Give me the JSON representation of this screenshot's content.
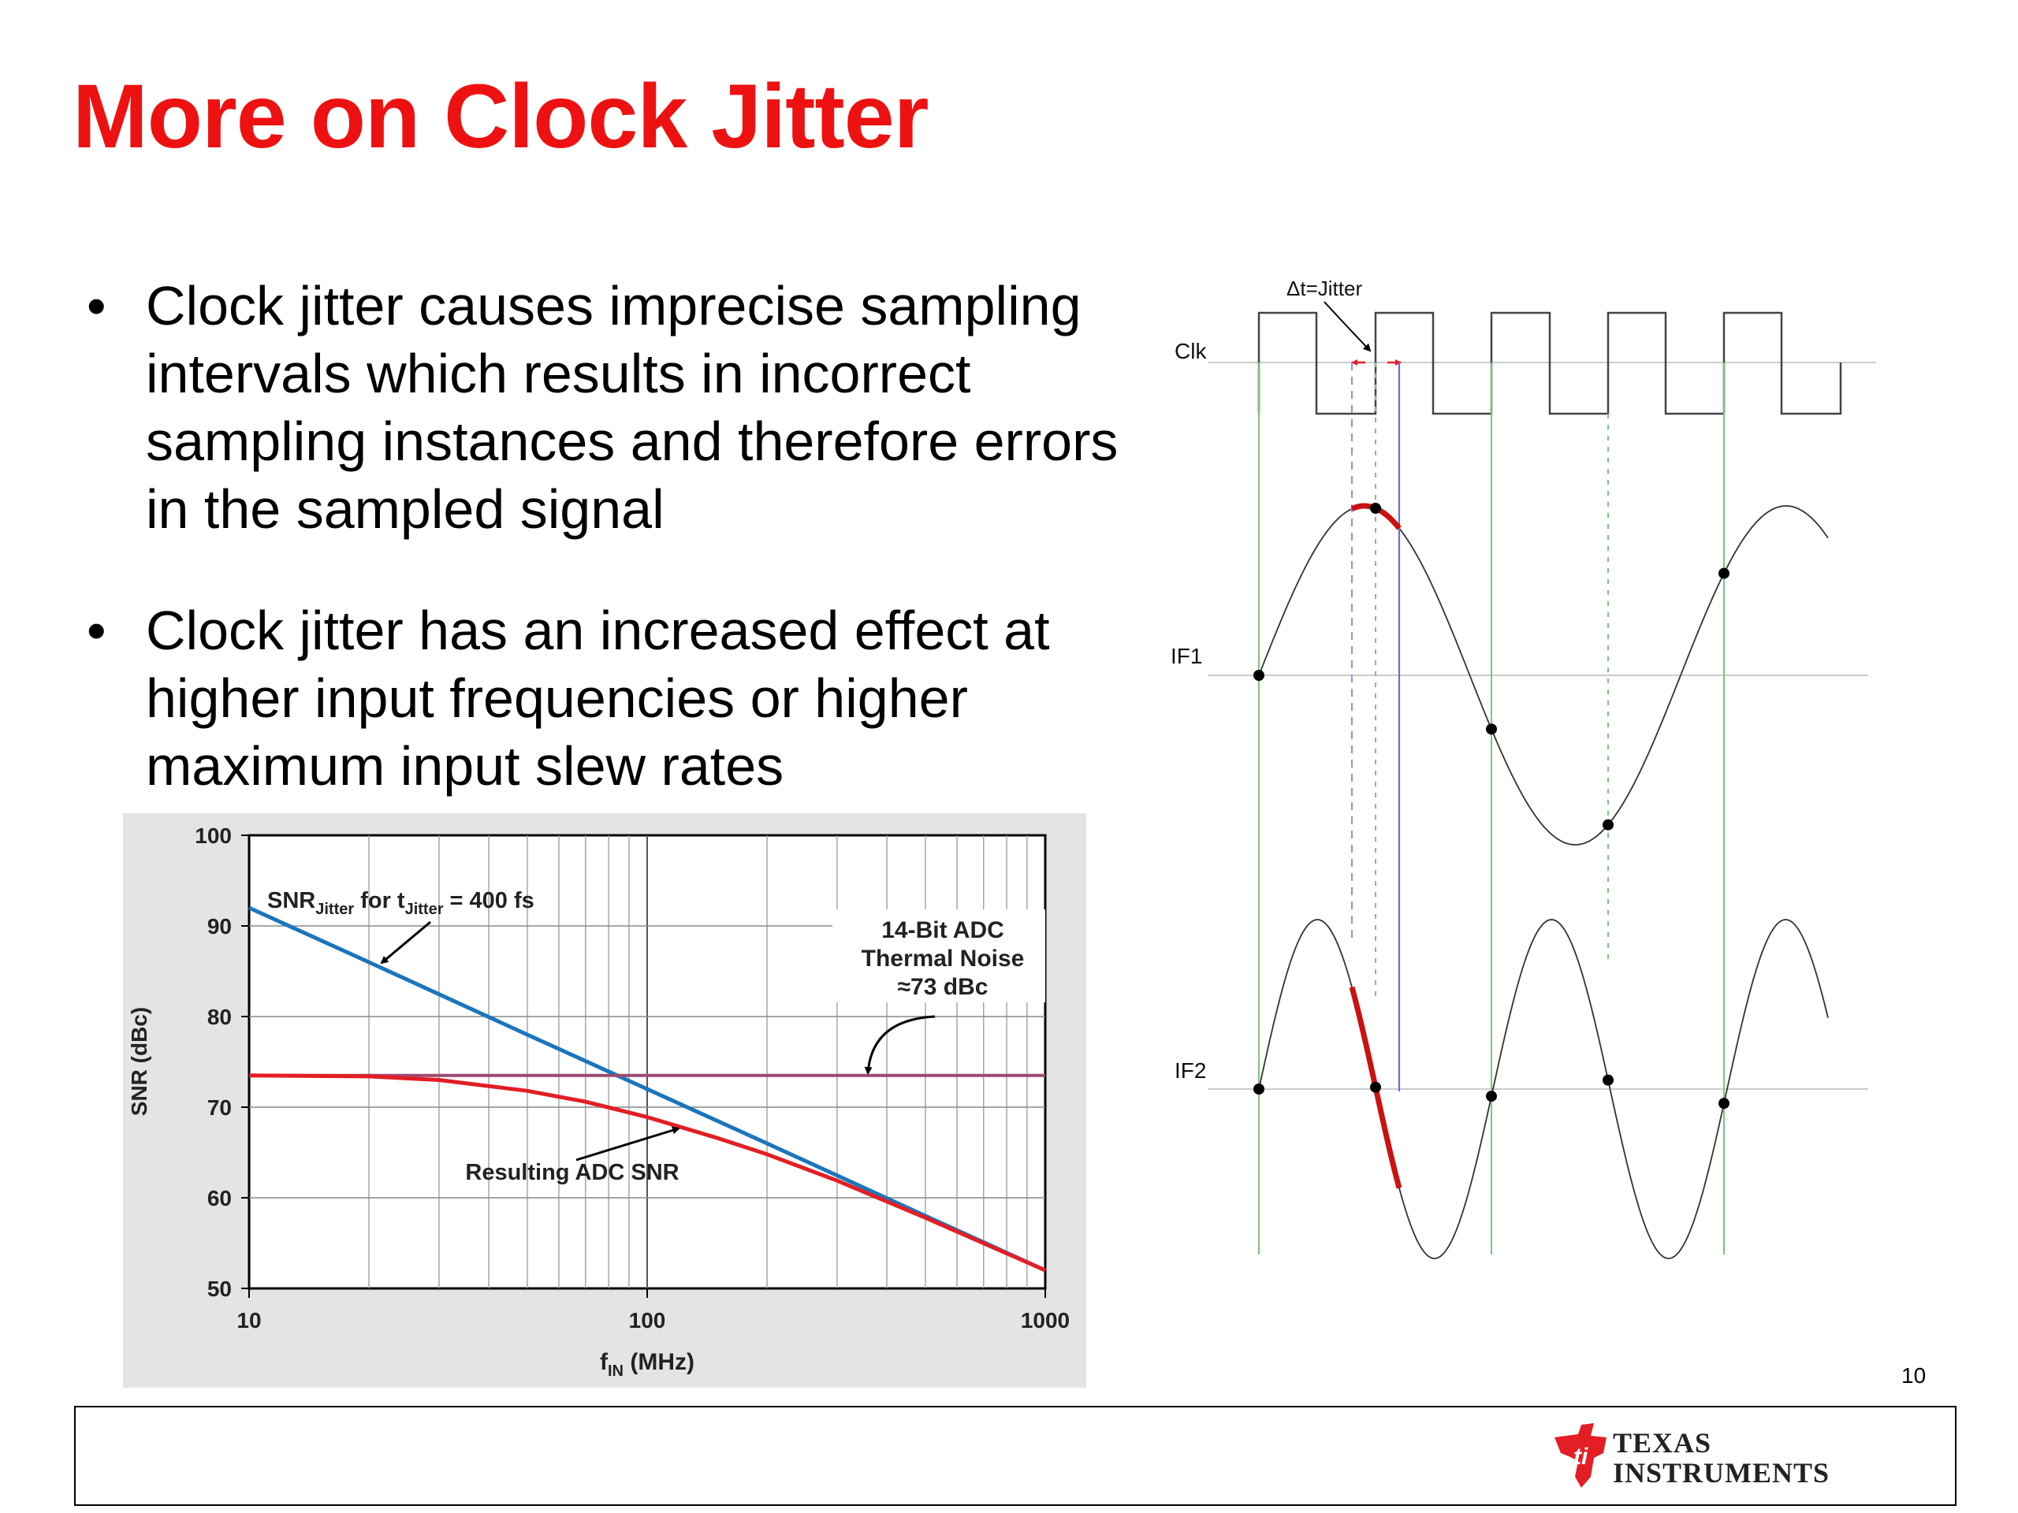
{
  "slide": {
    "title": "More on Clock Jitter",
    "bullets": [
      "Clock jitter causes imprecise sampling intervals which results in incorrect sampling instances and therefore errors in the sampled signal",
      "Clock jitter has an increased effect at higher input frequencies or higher maximum input slew rates"
    ],
    "page_number": "10"
  },
  "chart_data": {
    "type": "line",
    "xscale": "log",
    "xlim": [
      10,
      1000
    ],
    "ylim": [
      50,
      100
    ],
    "xticks": [
      "10",
      "100",
      "1000"
    ],
    "yticks": [
      "50",
      "60",
      "70",
      "80",
      "90",
      "100"
    ],
    "xlabel": "f",
    "xlabel_sub": "IN",
    "xlabel_unit": " (MHz)",
    "ylabel": "SNR (dBc)",
    "grid": true,
    "series": [
      {
        "label": "SNR Jitter",
        "color": "#1b75bc",
        "x": [
          10,
          20,
          50,
          100,
          200,
          500,
          1000
        ],
        "y": [
          92,
          86,
          78,
          72,
          66,
          58,
          52
        ]
      },
      {
        "label": "Thermal Noise",
        "color": "#9b4a73",
        "x": [
          10,
          1000
        ],
        "y": [
          73.5,
          73.5
        ]
      },
      {
        "label": "Resulting ADC SNR",
        "color": "#e31e24",
        "x": [
          10,
          20,
          30,
          50,
          70,
          100,
          150,
          200,
          300,
          500,
          1000
        ],
        "y": [
          73.5,
          73.4,
          73.0,
          71.8,
          70.6,
          68.9,
          66.6,
          64.8,
          61.9,
          57.8,
          52
        ]
      }
    ],
    "annotations": {
      "jitter_label_a": "SNR",
      "jitter_label_sub1": "Jitter",
      "jitter_label_b": " for t",
      "jitter_label_sub2": "Jitter",
      "jitter_label_c": " = 400 fs",
      "thermal_l1": "14-Bit ADC",
      "thermal_l2": "Thermal Noise",
      "thermal_l3": "≈73 dBc",
      "resulting": "Resulting ADC SNR"
    }
  },
  "diagram": {
    "jitter_label": "Δt=Jitter",
    "clk_label": "Clk",
    "if1_label": "IF1",
    "if2_label": "IF2"
  },
  "footer": {
    "logo_icon": "texas-instruments-logo-icon",
    "logo_line1": "TEXAS",
    "logo_line2": "INSTRUMENTS",
    "logo_color": "#e31e24"
  }
}
